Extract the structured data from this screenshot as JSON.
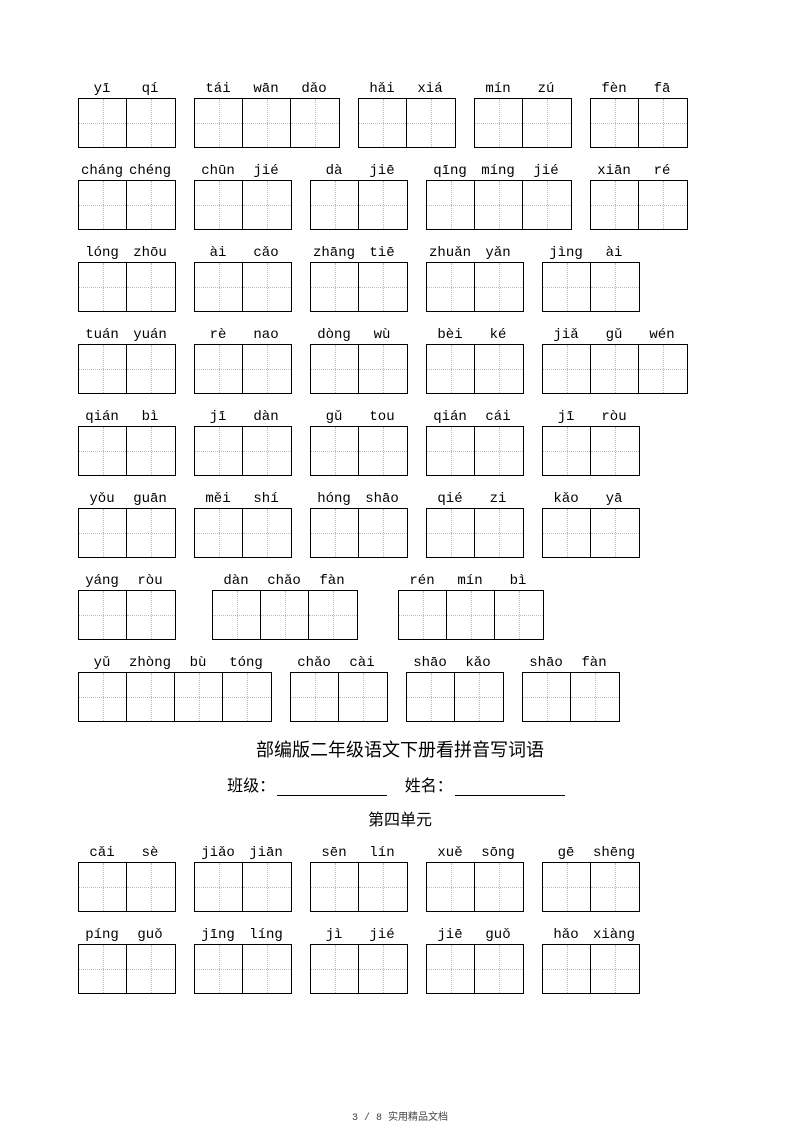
{
  "heading": "部编版二年级语文下册看拼音写词语",
  "form": {
    "class_label": "班级：",
    "name_label": "姓名："
  },
  "subheading": "第四单元",
  "footer": "3 / 8 实用精品文档",
  "rows": [
    [
      {
        "p": [
          "yī",
          "qí"
        ]
      },
      {
        "p": [
          "tái",
          "wān",
          "dǎo"
        ]
      },
      {
        "p": [
          "hǎi",
          "xiá"
        ]
      },
      {
        "p": [
          "mín",
          "zú"
        ]
      },
      {
        "p": [
          "fèn",
          "fā"
        ]
      }
    ],
    [
      {
        "p": [
          "cháng",
          "chéng"
        ]
      },
      {
        "p": [
          "chūn",
          "jié"
        ]
      },
      {
        "p": [
          "dà",
          "jiē"
        ]
      },
      {
        "p": [
          "qīng",
          "míng",
          "jié"
        ]
      },
      {
        "p": [
          "xiān",
          "ré"
        ]
      }
    ],
    [
      {
        "p": [
          "lóng",
          "zhōu"
        ]
      },
      {
        "p": [
          "ài",
          "cǎo"
        ]
      },
      {
        "p": [
          "zhāng",
          "tiē"
        ]
      },
      {
        "p": [
          "zhuǎn",
          "yǎn"
        ]
      },
      {
        "p": [
          "jìng",
          "ài"
        ]
      }
    ],
    [
      {
        "p": [
          "tuán",
          "yuán"
        ]
      },
      {
        "p": [
          "rè",
          "nao"
        ]
      },
      {
        "p": [
          "dòng",
          "wù"
        ]
      },
      {
        "p": [
          "bèi",
          "ké"
        ]
      },
      {
        "p": [
          "jiǎ",
          "gǔ",
          "wén"
        ]
      }
    ],
    [
      {
        "p": [
          "qián",
          "bì"
        ]
      },
      {
        "p": [
          "jī",
          "dàn"
        ]
      },
      {
        "p": [
          "gǔ",
          "tou"
        ]
      },
      {
        "p": [
          "qián",
          "cái"
        ]
      },
      {
        "p": [
          "jī",
          "ròu"
        ]
      }
    ],
    [
      {
        "p": [
          "yǒu",
          "guān"
        ]
      },
      {
        "p": [
          "měi",
          "shí"
        ]
      },
      {
        "p": [
          "hóng",
          "shāo"
        ]
      },
      {
        "p": [
          "qié",
          "zi"
        ]
      },
      {
        "p": [
          "kǎo",
          "yā"
        ]
      }
    ],
    [
      {
        "p": [
          "yáng",
          "ròu"
        ],
        "mr": 18
      },
      {
        "p": [
          "dàn",
          "chǎo",
          "fàn"
        ],
        "mr": 22
      },
      {
        "p": [
          "rén",
          "mín",
          "bì"
        ]
      }
    ],
    [
      {
        "p": [
          "yǔ",
          "zhòng",
          "bù",
          "tóng"
        ]
      },
      {
        "p": [
          "chǎo",
          "cài"
        ]
      },
      {
        "p": [
          "shāo",
          "kǎo"
        ]
      },
      {
        "p": [
          "shāo",
          "fàn"
        ]
      }
    ]
  ],
  "rows2": [
    [
      {
        "p": [
          "cǎi",
          "sè"
        ]
      },
      {
        "p": [
          "jiǎo",
          "jiān"
        ]
      },
      {
        "p": [
          "sēn",
          "lín"
        ]
      },
      {
        "p": [
          "xuě",
          "sōng"
        ]
      },
      {
        "p": [
          "gē",
          "shēng"
        ]
      }
    ],
    [
      {
        "p": [
          "píng",
          "guǒ"
        ]
      },
      {
        "p": [
          "jīng",
          "líng"
        ]
      },
      {
        "p": [
          "jì",
          "jié"
        ]
      },
      {
        "p": [
          "jiē",
          "guǒ"
        ]
      },
      {
        "p": [
          "hǎo",
          "xiàng"
        ]
      }
    ]
  ]
}
